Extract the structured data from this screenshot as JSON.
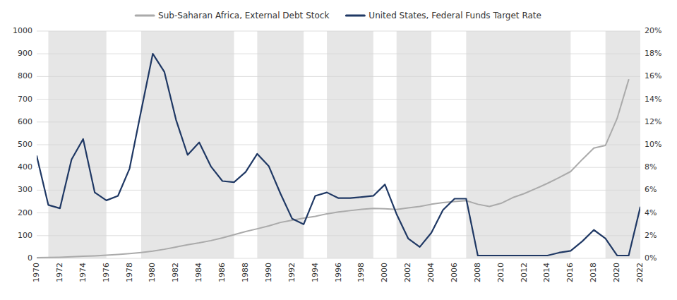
{
  "chart_data": {
    "type": "line",
    "x": [
      1970,
      1971,
      1972,
      1973,
      1974,
      1975,
      1976,
      1977,
      1978,
      1979,
      1980,
      1981,
      1982,
      1983,
      1984,
      1985,
      1986,
      1987,
      1988,
      1989,
      1990,
      1991,
      1992,
      1993,
      1994,
      1995,
      1996,
      1997,
      1998,
      1999,
      2000,
      2001,
      2002,
      2003,
      2004,
      2005,
      2006,
      2007,
      2008,
      2009,
      2010,
      2011,
      2012,
      2013,
      2014,
      2015,
      2016,
      2017,
      2018,
      2019,
      2020,
      2021,
      2022
    ],
    "series": [
      {
        "name": "Sub-Saharan Africa, External Debt Stock",
        "color": "#aaaaaa",
        "axis": "y",
        "values": [
          3,
          4,
          5,
          7,
          9,
          11,
          14,
          17,
          21,
          26,
          32,
          40,
          50,
          60,
          68,
          78,
          90,
          104,
          118,
          130,
          143,
          158,
          168,
          177,
          185,
          196,
          204,
          210,
          216,
          220,
          218,
          215,
          222,
          228,
          238,
          245,
          250,
          254,
          238,
          228,
          242,
          267,
          285,
          307,
          330,
          355,
          382,
          435,
          485,
          497,
          615,
          786,
          null
        ]
      },
      {
        "name": "United States, Federal Funds Target Rate",
        "color": "#1f3864",
        "axis": "y2",
        "values": [
          9.0,
          4.7,
          4.4,
          8.7,
          10.5,
          5.8,
          5.1,
          5.5,
          7.9,
          13.0,
          18.0,
          16.4,
          12.2,
          9.1,
          10.2,
          8.1,
          6.8,
          6.7,
          7.6,
          9.2,
          8.1,
          5.7,
          3.5,
          3.0,
          5.5,
          5.8,
          5.3,
          5.3,
          5.4,
          5.5,
          6.5,
          3.9,
          1.75,
          1.0,
          2.25,
          4.25,
          5.25,
          5.25,
          0.25,
          0.25,
          0.25,
          0.25,
          0.25,
          0.25,
          0.25,
          0.5,
          0.66,
          1.5,
          2.5,
          1.75,
          0.25,
          0.25,
          4.5
        ]
      }
    ],
    "shaded_regions": [
      [
        1971,
        1976
      ],
      [
        1979,
        1987
      ],
      [
        1989,
        1993
      ],
      [
        1995,
        1999
      ],
      [
        2001,
        2004
      ],
      [
        2007,
        2016
      ],
      [
        2019,
        2022
      ]
    ],
    "xlim": [
      1970,
      2022
    ],
    "xticks": [
      1970,
      1972,
      1974,
      1976,
      1978,
      1980,
      1982,
      1984,
      1986,
      1988,
      1990,
      1992,
      1994,
      1996,
      1998,
      2000,
      2002,
      2004,
      2006,
      2008,
      2010,
      2012,
      2014,
      2016,
      2018,
      2020,
      2022
    ],
    "ylim": [
      0,
      1000
    ],
    "yticks": [
      0,
      100,
      200,
      300,
      400,
      500,
      600,
      700,
      800,
      900,
      1000
    ],
    "y2lim": [
      0,
      20
    ],
    "y2ticks": [
      {
        "value": 0,
        "label": "0%"
      },
      {
        "value": 2,
        "label": "2%"
      },
      {
        "value": 4,
        "label": "4%"
      },
      {
        "value": 6,
        "label": "6%"
      },
      {
        "value": 8,
        "label": "8%"
      },
      {
        "value": 10,
        "label": "10%"
      },
      {
        "value": 12,
        "label": "12%"
      },
      {
        "value": 14,
        "label": "14%"
      },
      {
        "value": 16,
        "label": "16%"
      },
      {
        "value": 18,
        "label": "18%"
      },
      {
        "value": 20,
        "label": "20%"
      }
    ],
    "grid": true,
    "legend": "top"
  }
}
